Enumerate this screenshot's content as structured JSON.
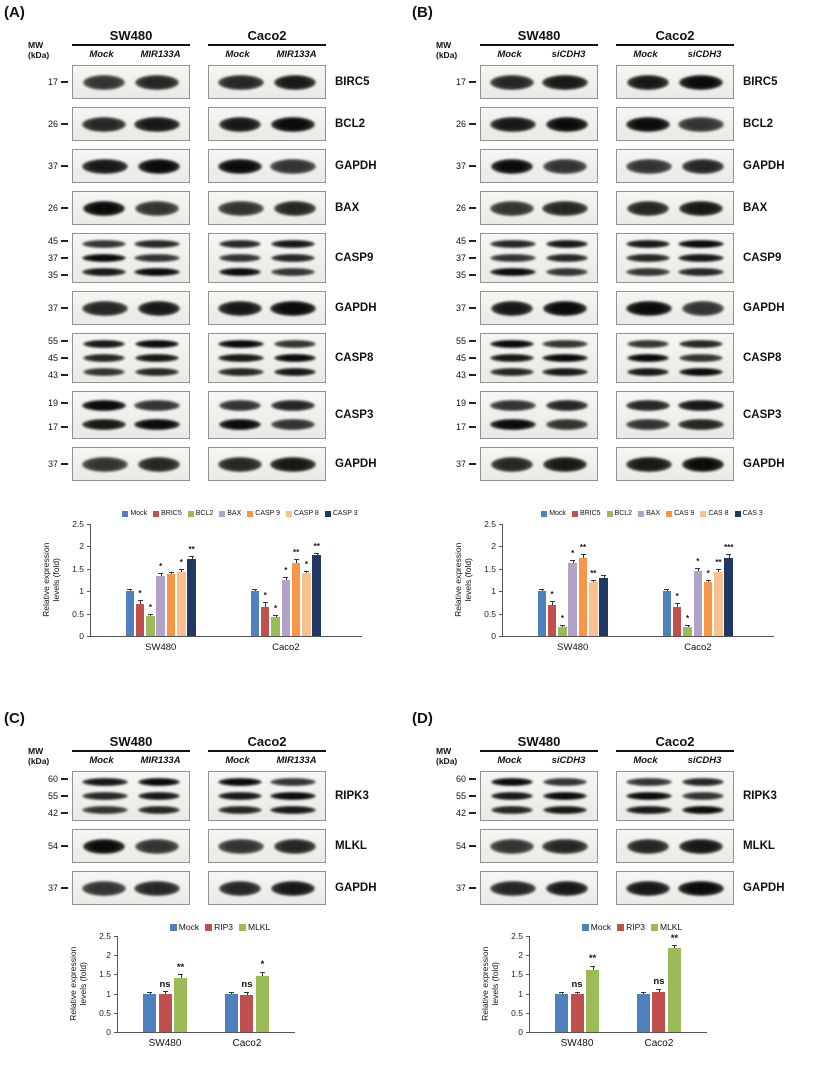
{
  "figure": {
    "panels": [
      {
        "id": "A",
        "label": "(A)",
        "mw_unit": [
          "MW",
          "(kDa)"
        ],
        "cell_lines": [
          "SW480",
          "Caco2"
        ],
        "conditions": [
          "Mock",
          "MIR133A"
        ],
        "rows": [
          {
            "mw": [
              "17"
            ],
            "target": "BIRC5"
          },
          {
            "mw": [
              "26"
            ],
            "target": "BCL2"
          },
          {
            "mw": [
              "37"
            ],
            "target": "GAPDH"
          },
          {
            "mw": [
              "26"
            ],
            "target": "BAX"
          },
          {
            "mw": [
              "45",
              "37",
              "35"
            ],
            "target": "CASP9"
          },
          {
            "mw": [
              "37"
            ],
            "target": "GAPDH"
          },
          {
            "mw": [
              "55",
              "45",
              "43"
            ],
            "target": "CASP8"
          },
          {
            "mw": [
              "19",
              "17"
            ],
            "target": "CASP3"
          },
          {
            "mw": [
              "37"
            ],
            "target": "GAPDH"
          }
        ],
        "chart": {
          "type": "bar",
          "ylabel_lines": "Relative expression\nlevels (fold)",
          "ylim": [
            0,
            2.5
          ],
          "yticks": [
            "0",
            "0.5",
            "1",
            "1.5",
            "2",
            "2.5"
          ],
          "groups": [
            "SW480",
            "Caco2"
          ],
          "series": [
            {
              "name": "Mock",
              "color": "#4F81BD",
              "values": [
                1.0,
                1.0
              ],
              "err": [
                0.04,
                0.04
              ],
              "sig": [
                "",
                ""
              ]
            },
            {
              "name": "BRIC5",
              "color": "#C0504D",
              "values": [
                0.72,
                0.65
              ],
              "err": [
                0.08,
                0.1
              ],
              "sig": [
                "*",
                "*"
              ]
            },
            {
              "name": "BCL2",
              "color": "#9BBB59",
              "values": [
                0.45,
                0.42
              ],
              "err": [
                0.05,
                0.05
              ],
              "sig": [
                "*",
                "*"
              ]
            },
            {
              "name": "BAX",
              "color": "#B3A2C7",
              "values": [
                1.35,
                1.25
              ],
              "err": [
                0.06,
                0.06
              ],
              "sig": [
                "*",
                "*"
              ]
            },
            {
              "name": "CASP 9",
              "color": "#F79646",
              "values": [
                1.38,
                1.63
              ],
              "err": [
                0.05,
                0.08
              ],
              "sig": [
                "",
                "**"
              ]
            },
            {
              "name": "CASP 8",
              "color": "#FAC08F",
              "values": [
                1.43,
                1.4
              ],
              "err": [
                0.06,
                0.06
              ],
              "sig": [
                "*",
                "*"
              ]
            },
            {
              "name": "CASP 3",
              "color": "#1F3864",
              "values": [
                1.72,
                1.8
              ],
              "err": [
                0.07,
                0.06
              ],
              "sig": [
                "**",
                "**"
              ]
            }
          ]
        }
      },
      {
        "id": "B",
        "label": "(B)",
        "mw_unit": [
          "MW",
          "(kDa)"
        ],
        "cell_lines": [
          "SW480",
          "Caco2"
        ],
        "conditions": [
          "Mock",
          "siCDH3"
        ],
        "rows": [
          {
            "mw": [
              "17"
            ],
            "target": "BIRC5"
          },
          {
            "mw": [
              "26"
            ],
            "target": "BCL2"
          },
          {
            "mw": [
              "37"
            ],
            "target": "GAPDH"
          },
          {
            "mw": [
              "26"
            ],
            "target": "BAX"
          },
          {
            "mw": [
              "45",
              "37",
              "35"
            ],
            "target": "CASP9"
          },
          {
            "mw": [
              "37"
            ],
            "target": "GAPDH"
          },
          {
            "mw": [
              "55",
              "45",
              "43"
            ],
            "target": "CASP8"
          },
          {
            "mw": [
              "19",
              "17"
            ],
            "target": "CASP3"
          },
          {
            "mw": [
              "37"
            ],
            "target": "GAPDH"
          }
        ],
        "chart": {
          "type": "bar",
          "ylabel_lines": "Relative expression\nlevels (fold)",
          "ylim": [
            0,
            2.5
          ],
          "yticks": [
            "0",
            "0.5",
            "1",
            "1.5",
            "2",
            "2.5"
          ],
          "groups": [
            "SW480",
            "Caco2"
          ],
          "series": [
            {
              "name": "Mock",
              "color": "#4F81BD",
              "values": [
                1.0,
                1.0
              ],
              "err": [
                0.04,
                0.04
              ],
              "sig": [
                "",
                ""
              ]
            },
            {
              "name": "BRIC5",
              "color": "#C0504D",
              "values": [
                0.7,
                0.65
              ],
              "err": [
                0.08,
                0.09
              ],
              "sig": [
                "*",
                "*"
              ]
            },
            {
              "name": "BCL2",
              "color": "#9BBB59",
              "values": [
                0.2,
                0.2
              ],
              "err": [
                0.04,
                0.05
              ],
              "sig": [
                "*",
                "*"
              ]
            },
            {
              "name": "BAX",
              "color": "#B3A2C7",
              "values": [
                1.63,
                1.45
              ],
              "err": [
                0.07,
                0.06
              ],
              "sig": [
                "*",
                "*"
              ]
            },
            {
              "name": "CAS 9",
              "color": "#F79646",
              "values": [
                1.75,
                1.2
              ],
              "err": [
                0.07,
                0.06
              ],
              "sig": [
                "**",
                "*"
              ]
            },
            {
              "name": "CAS 8",
              "color": "#FAC08F",
              "values": [
                1.2,
                1.42
              ],
              "err": [
                0.05,
                0.07
              ],
              "sig": [
                "**",
                "**"
              ]
            },
            {
              "name": "CAS 3",
              "color": "#1F3864",
              "values": [
                1.3,
                1.75
              ],
              "err": [
                0.06,
                0.07
              ],
              "sig": [
                "",
                "***"
              ]
            }
          ]
        }
      },
      {
        "id": "C",
        "label": "(C)",
        "mw_unit": [
          "MW",
          "(kDa)"
        ],
        "cell_lines": [
          "SW480",
          "Caco2"
        ],
        "conditions": [
          "Mock",
          "MIR133A"
        ],
        "rows": [
          {
            "mw": [
              "60",
              "55",
              "42"
            ],
            "target": "RIPK3"
          },
          {
            "mw": [
              "54"
            ],
            "target": "MLKL"
          },
          {
            "mw": [
              "37"
            ],
            "target": "GAPDH"
          }
        ],
        "chart": {
          "type": "bar",
          "ylabel_lines": "Relative expression\nlevels (fold)",
          "ylim": [
            0,
            2.5
          ],
          "yticks": [
            "0",
            "0.5",
            "1",
            "1.5",
            "2",
            "2.5"
          ],
          "groups": [
            "SW480",
            "Caco2"
          ],
          "series": [
            {
              "name": "Mock",
              "color": "#4F81BD",
              "values": [
                1.0,
                1.0
              ],
              "err": [
                0.05,
                0.05
              ],
              "sig": [
                "",
                ""
              ]
            },
            {
              "name": "RIP3",
              "color": "#C0504D",
              "values": [
                1.0,
                0.97
              ],
              "err": [
                0.06,
                0.08
              ],
              "sig": [
                "ns",
                "ns"
              ]
            },
            {
              "name": "MLKL",
              "color": "#9BBB59",
              "values": [
                1.4,
                1.45
              ],
              "err": [
                0.1,
                0.12
              ],
              "sig": [
                "**",
                "*"
              ]
            }
          ]
        }
      },
      {
        "id": "D",
        "label": "(D)",
        "mw_unit": [
          "MW",
          "(kDa)"
        ],
        "cell_lines": [
          "SW480",
          "Caco2"
        ],
        "conditions": [
          "Mock",
          "siCDH3"
        ],
        "rows": [
          {
            "mw": [
              "60",
              "55",
              "42"
            ],
            "target": "RIPK3"
          },
          {
            "mw": [
              "54"
            ],
            "target": "MLKL"
          },
          {
            "mw": [
              "37"
            ],
            "target": "GAPDH"
          }
        ],
        "chart": {
          "type": "bar",
          "ylabel_lines": "Relative expression\nlevels (fold)",
          "ylim": [
            0,
            2.5
          ],
          "yticks": [
            "0",
            "0.5",
            "1",
            "1.5",
            "2",
            "2.5"
          ],
          "groups": [
            "SW480",
            "Caco2"
          ],
          "series": [
            {
              "name": "Mock",
              "color": "#4F81BD",
              "values": [
                1.0,
                1.0
              ],
              "err": [
                0.05,
                0.05
              ],
              "sig": [
                "",
                ""
              ]
            },
            {
              "name": "RIP3",
              "color": "#C0504D",
              "values": [
                1.0,
                1.03
              ],
              "err": [
                0.05,
                0.1
              ],
              "sig": [
                "ns",
                "ns"
              ]
            },
            {
              "name": "MLKL",
              "color": "#9BBB59",
              "values": [
                1.62,
                2.18
              ],
              "err": [
                0.1,
                0.08
              ],
              "sig": [
                "**",
                "**"
              ]
            }
          ]
        }
      }
    ]
  }
}
